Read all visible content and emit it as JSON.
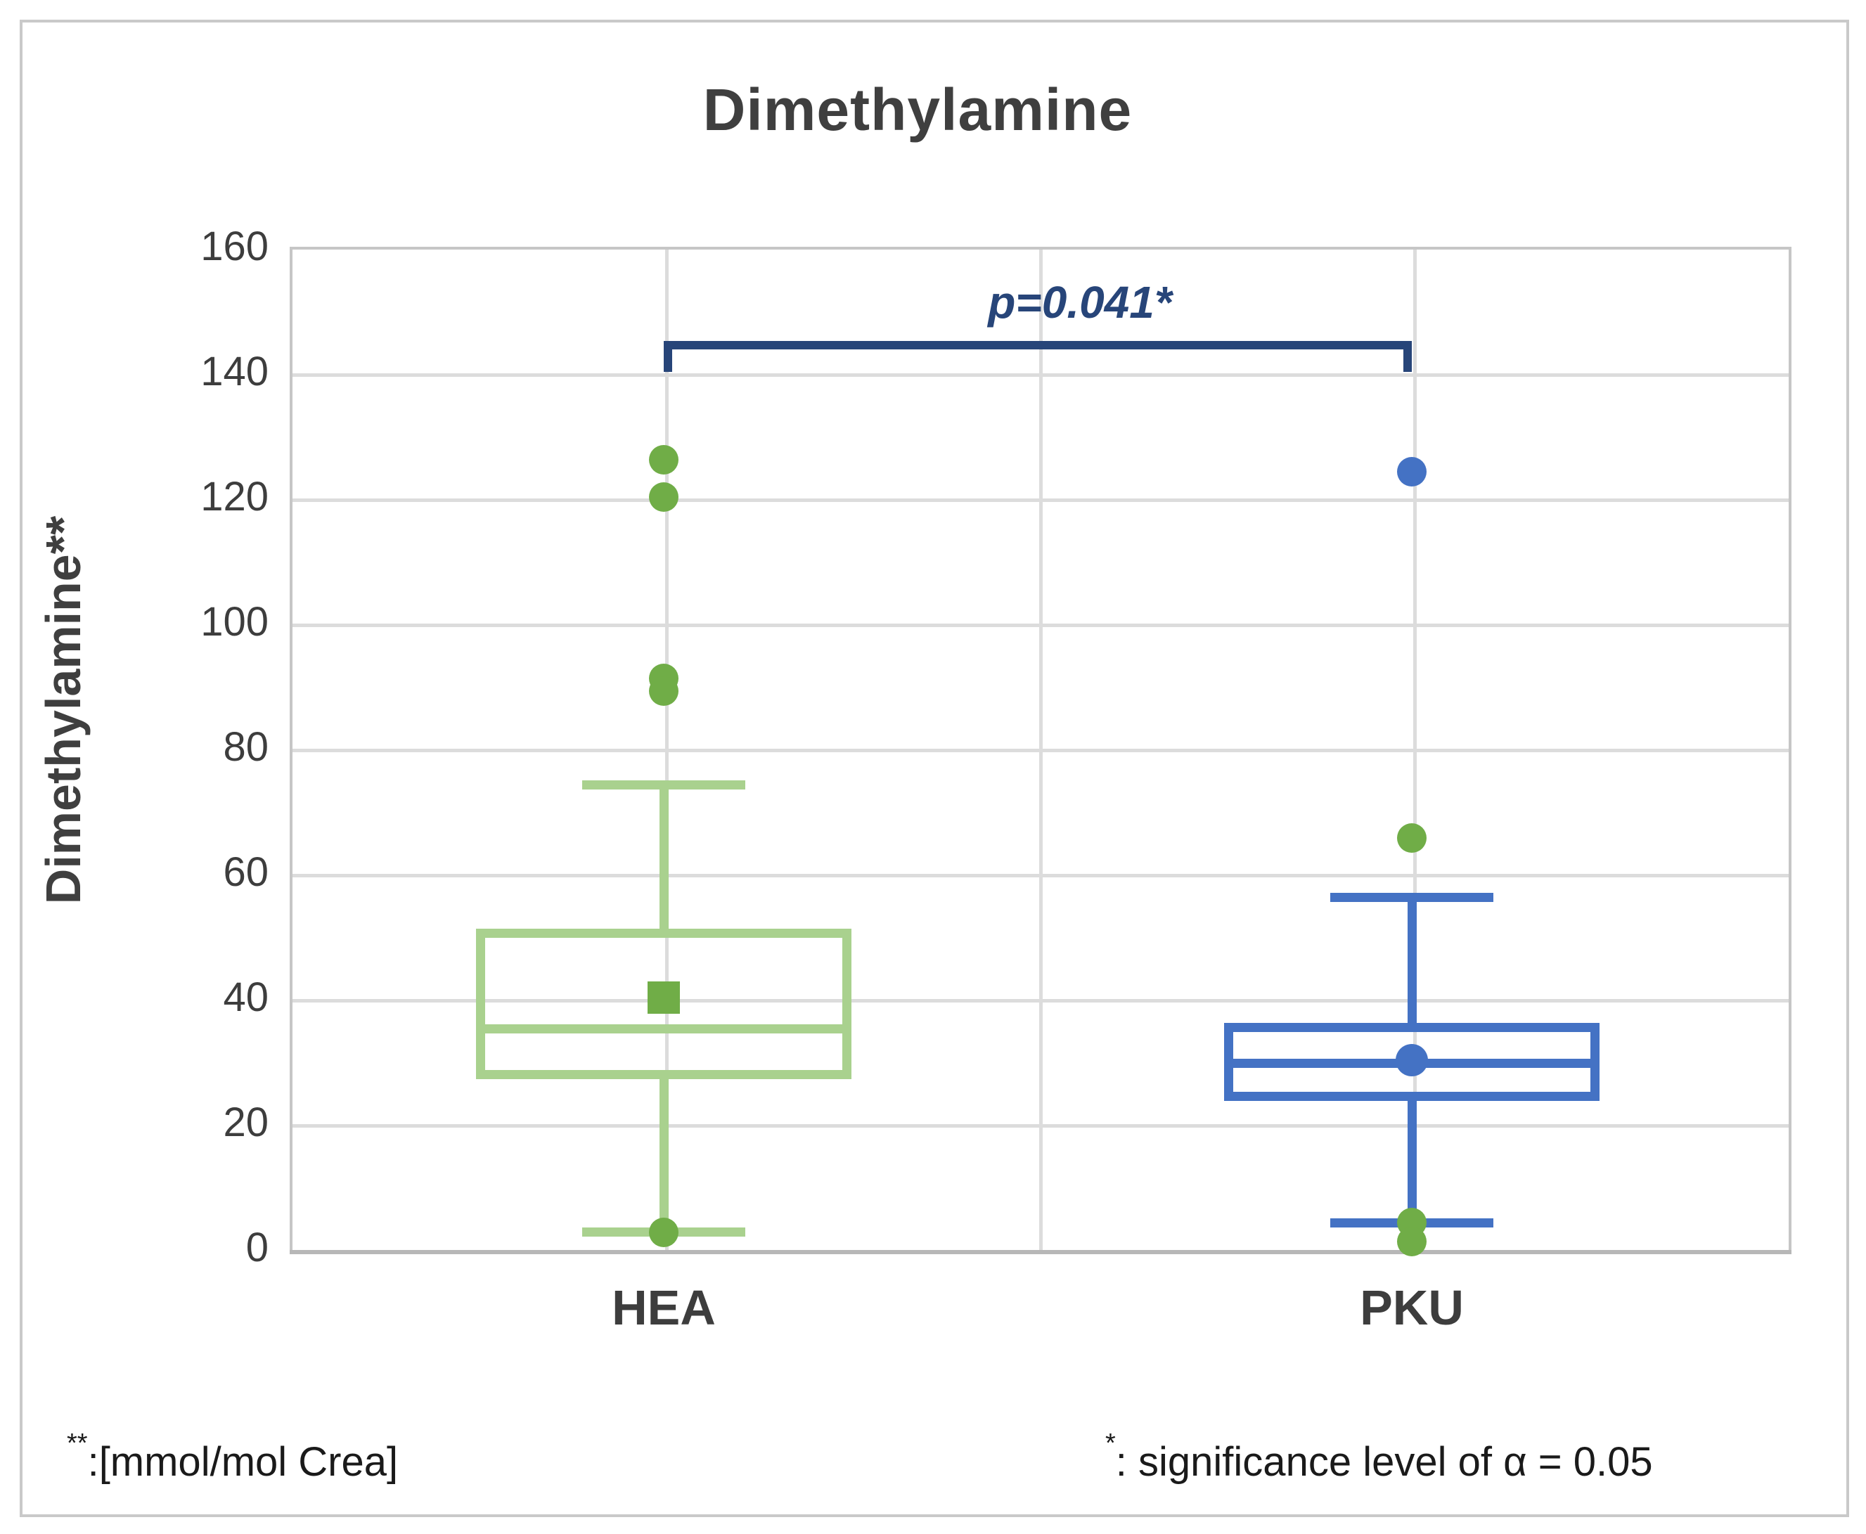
{
  "title": "Dimethylamine",
  "y_axis": {
    "label": "Dimethylamine**",
    "min": 0,
    "max": 160,
    "tick_step": 20,
    "ticks": [
      160,
      140,
      120,
      100,
      80,
      60,
      40,
      20,
      0
    ]
  },
  "x_axis": {
    "categories": [
      "HEA",
      "PKU"
    ]
  },
  "chart_data": {
    "type": "box",
    "title": "Dimethylamine",
    "ylabel": "Dimethylamine**",
    "ylim": [
      0,
      160
    ],
    "grid": true,
    "categories": [
      "HEA",
      "PKU"
    ],
    "series": [
      {
        "name": "HEA",
        "q1": 27,
        "median": 35,
        "q3": 51,
        "mean": 40,
        "whisker_low": 2.5,
        "whisker_high": 74,
        "mean_marker": "square",
        "line_color_key": "green_line",
        "mean_color_key": "green_fill",
        "outliers": [
          {
            "v": 126,
            "c": "green"
          },
          {
            "v": 120,
            "c": "green"
          },
          {
            "v": 91,
            "c": "green"
          },
          {
            "v": 89,
            "c": "green"
          },
          {
            "v": 2.5,
            "c": "green"
          }
        ]
      },
      {
        "name": "PKU",
        "q1": 23.5,
        "median": 29.5,
        "q3": 36,
        "mean": 30,
        "whisker_low": 4,
        "whisker_high": 56,
        "mean_marker": "circle",
        "line_color_key": "blue",
        "mean_color_key": "blue",
        "outliers": [
          {
            "v": 124,
            "c": "blue"
          },
          {
            "v": 65.5,
            "c": "green"
          },
          {
            "v": 4,
            "c": "green"
          },
          {
            "v": 1,
            "c": "green"
          }
        ]
      }
    ],
    "p_label": "p=0.041*",
    "p_bracket_y": 145,
    "legend": "none"
  },
  "footnotes": {
    "left": {
      "sup": "**",
      "text": ":[mmol/mol Crea]"
    },
    "right": {
      "sup": "*",
      "text": ":  significance level of α = 0.05"
    }
  },
  "colors": {
    "green_line": "#a9d18e",
    "green_fill": "#70ad47",
    "blue": "#4472c4",
    "navy": "#274579",
    "grid": "#dcdcdc",
    "plot_border": "#c6c6c6",
    "text_dark": "#3d3d3d",
    "footnote_text": "#1a1a1a"
  }
}
